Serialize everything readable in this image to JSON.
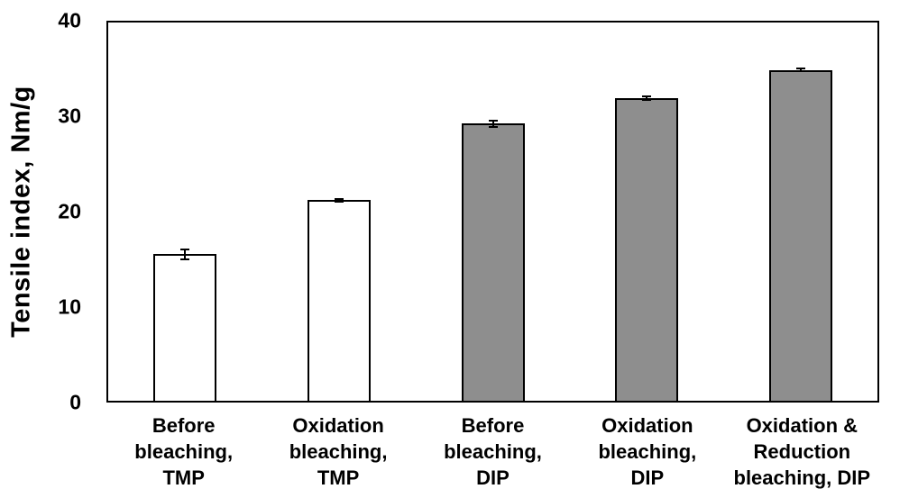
{
  "chart_data": {
    "type": "bar",
    "title": "",
    "xlabel": "",
    "ylabel": "Tensile index, Nm/g",
    "ylim": [
      0,
      40
    ],
    "yticks": [
      0,
      10,
      20,
      30,
      40
    ],
    "grid": false,
    "legend": null,
    "plot_border": "full-box",
    "background_color": "#ffffff",
    "bar_border_color": "#000000",
    "error_bar_color": "#000000",
    "categories": [
      "Before bleaching, TMP",
      "Oxidation bleaching, TMP",
      "Before bleaching, DIP",
      "Oxidation bleaching, DIP",
      "Oxidation & Reduction bleaching, DIP"
    ],
    "category_label_lines": [
      [
        "Before",
        "bleaching,",
        "TMP"
      ],
      [
        "Oxidation",
        "bleaching,",
        "TMP"
      ],
      [
        "Before",
        "bleaching,",
        "DIP"
      ],
      [
        "Oxidation",
        "bleaching,",
        "DIP"
      ],
      [
        "Oxidation &",
        "Reduction",
        "bleaching, DIP"
      ]
    ],
    "values": [
      15.5,
      21.2,
      29.3,
      32.0,
      35.0
    ],
    "errors": [
      0.5,
      0.15,
      0.3,
      0.15,
      0.1
    ],
    "bar_colors": [
      "#ffffff",
      "#ffffff",
      "#8e8e8e",
      "#8e8e8e",
      "#8e8e8e"
    ]
  }
}
